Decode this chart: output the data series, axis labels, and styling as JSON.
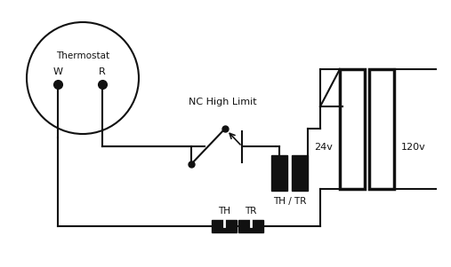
{
  "bg_color": "#ffffff",
  "line_color": "#111111",
  "thermostat_label": "Thermostat",
  "label_W": "W",
  "label_R": "R",
  "nc_high_limit_label": "NC High Limit",
  "label_24v": "24v",
  "label_120v": "120v",
  "label_TH_TR_mid": "TH / TR",
  "label_TH_bot": "TH",
  "label_TR_bot": "TR",
  "figw": 5.07,
  "figh": 3.01,
  "dpi": 100
}
